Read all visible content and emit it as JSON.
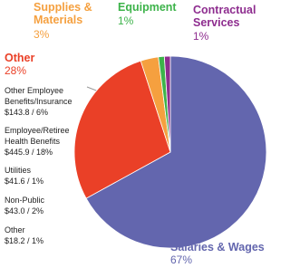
{
  "chart_data": {
    "type": "pie",
    "categories": [
      "Salaries & Wages",
      "Other",
      "Supplies & Materials",
      "Equipment",
      "Contractual Services"
    ],
    "values": [
      67,
      28,
      3,
      1,
      1
    ],
    "value_labels": [
      "67%",
      "28%",
      "3%",
      "1%",
      "1%"
    ],
    "colors": [
      "#6366ae",
      "#ea4027",
      "#f5a03f",
      "#3db34a",
      "#8e2d8f"
    ],
    "breakdown": [
      [
        "Other Employee",
        "Benefits/Insurance",
        "$143.8 / 6%"
      ],
      [
        "Employee/Retiree",
        "Health Benefits",
        "$445.9 / 18%"
      ],
      [
        "Utilities",
        "$41.6 / 1%"
      ],
      [
        "Non-Public",
        "$43.0 / 2%"
      ],
      [
        "Other",
        "$18.2 / 1%"
      ]
    ]
  }
}
